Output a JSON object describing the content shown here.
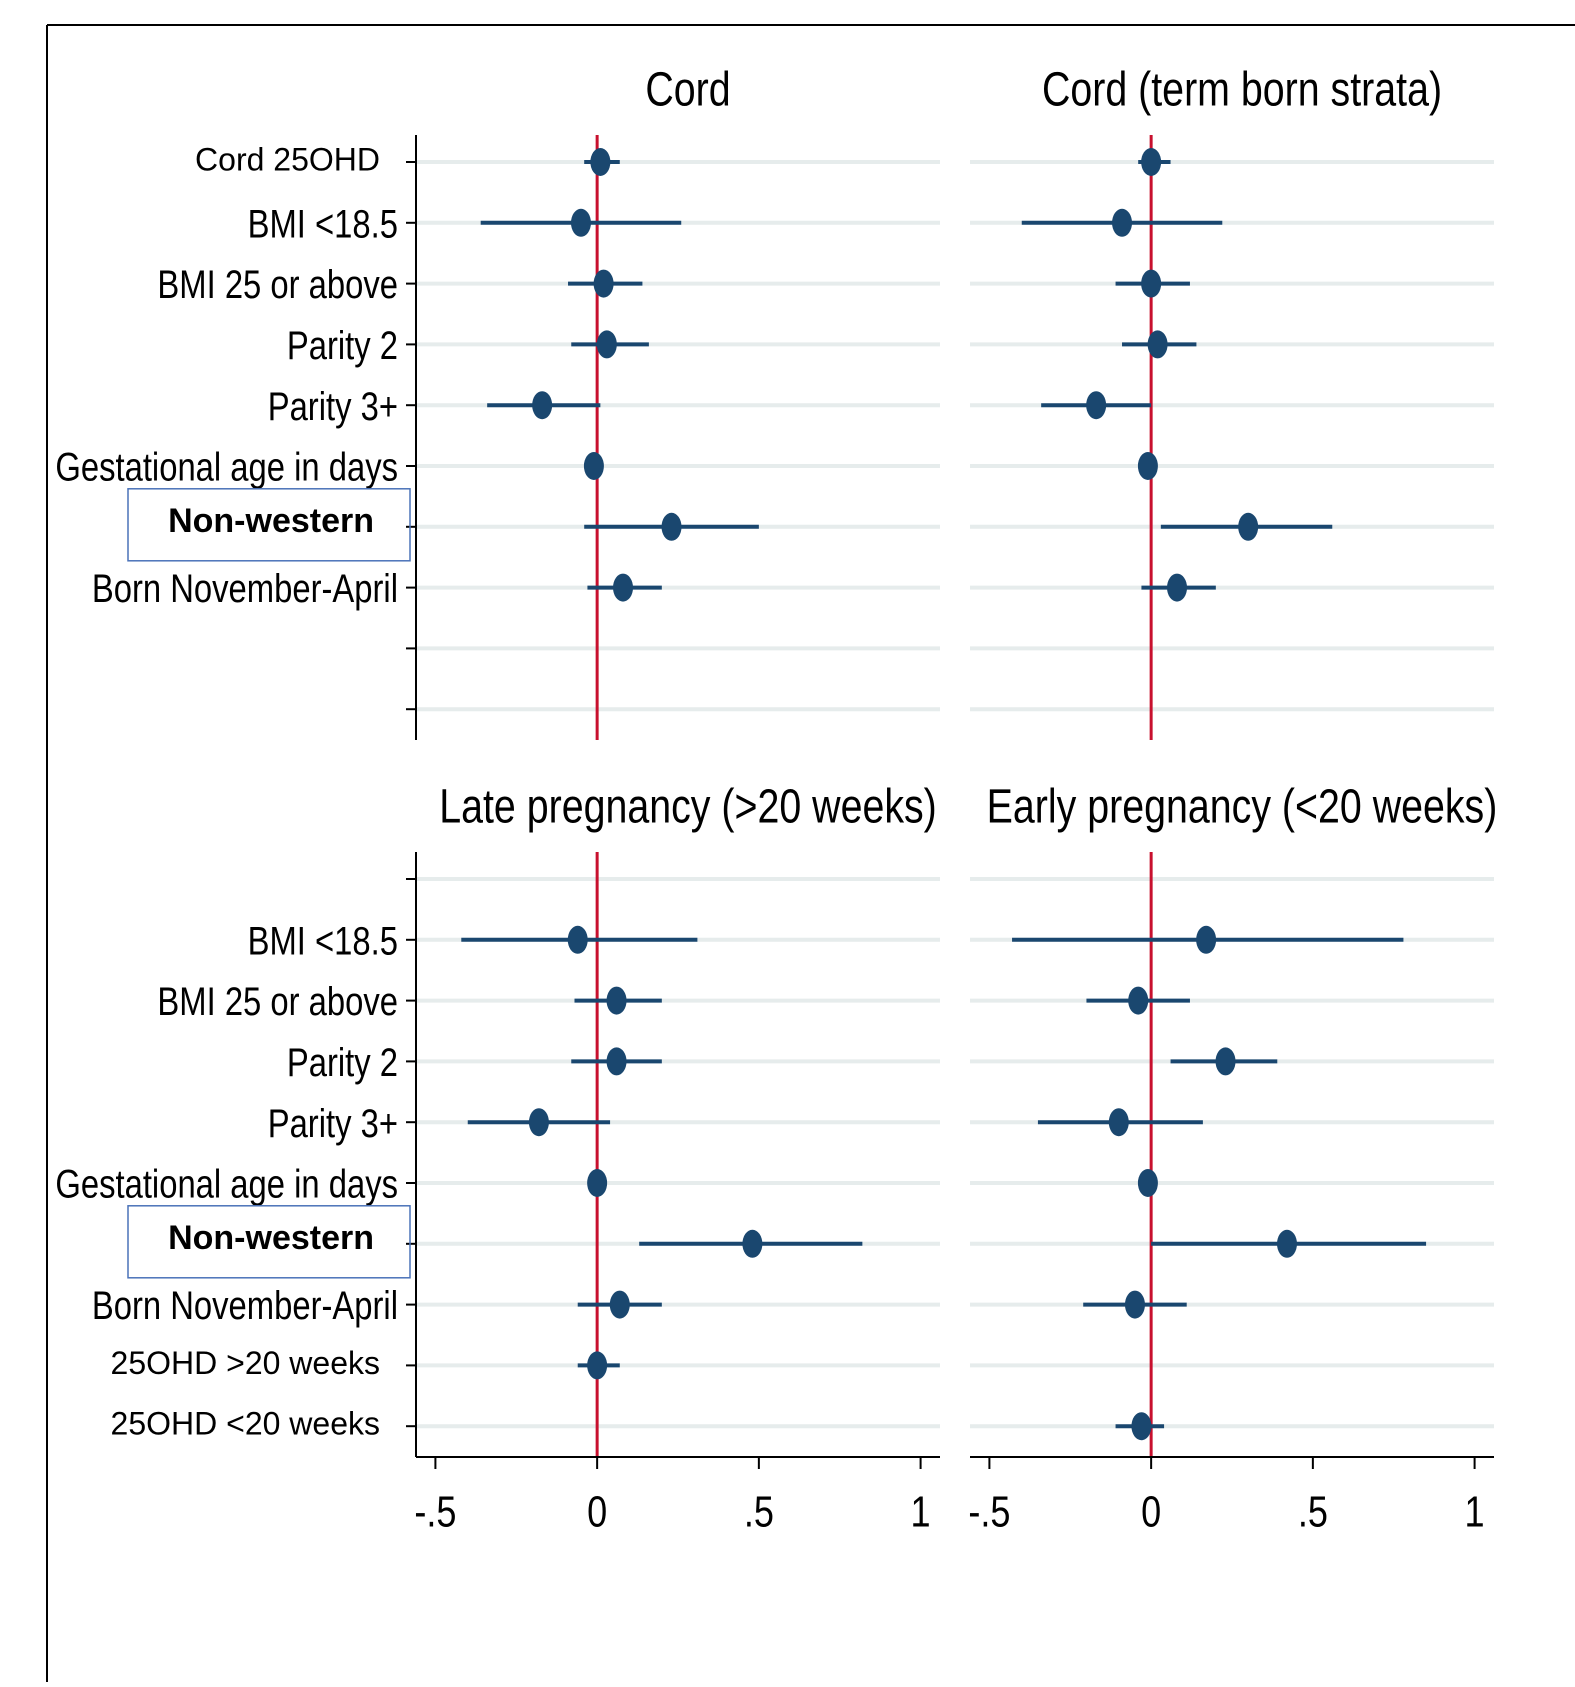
{
  "chart_data": [
    {
      "type": "forest",
      "title": "Cord",
      "categories": [
        "Cord 25OHD",
        "BMI <18.5",
        "BMI 25 or above",
        "Parity 2",
        "Parity 3+",
        "Gestational age in days",
        "Non-western",
        "Born November-April",
        null,
        null
      ],
      "values": [
        0.01,
        -0.05,
        0.02,
        0.03,
        -0.17,
        -0.01,
        0.23,
        0.08,
        null,
        null
      ],
      "lower": [
        -0.04,
        -0.36,
        -0.09,
        -0.08,
        -0.34,
        -0.01,
        -0.04,
        -0.03,
        null,
        null
      ],
      "upper": [
        0.07,
        0.26,
        0.14,
        0.16,
        0.01,
        -0.01,
        0.5,
        0.2,
        null,
        null
      ],
      "xlim": [
        -0.56,
        1.06
      ],
      "refline": 0,
      "color": "#1a476f",
      "refline_color": "#c8102e",
      "grid": true
    },
    {
      "type": "forest",
      "title": "Cord (term born strata)",
      "values": [
        0.0,
        -0.09,
        0.0,
        0.02,
        -0.17,
        -0.01,
        0.3,
        0.08,
        null,
        null
      ],
      "lower": [
        -0.04,
        -0.4,
        -0.11,
        -0.09,
        -0.34,
        -0.01,
        0.03,
        -0.03,
        null,
        null
      ],
      "upper": [
        0.06,
        0.22,
        0.12,
        0.14,
        0.0,
        -0.01,
        0.56,
        0.2,
        null,
        null
      ],
      "xlim": [
        -0.56,
        1.06
      ],
      "refline": 0,
      "color": "#1a476f",
      "refline_color": "#c8102e",
      "grid": true
    },
    {
      "type": "forest",
      "title": "Late pregnancy (>20 weeks)",
      "categories": [
        null,
        "BMI <18.5",
        "BMI 25 or above",
        "Parity 2",
        "Parity 3+",
        "Gestational age in days",
        "Non-western",
        "Born November-April",
        "25OHD >20 weeks",
        "25OHD <20 weeks"
      ],
      "values": [
        null,
        -0.06,
        0.06,
        0.06,
        -0.18,
        0.0,
        0.48,
        0.07,
        0.0,
        null
      ],
      "lower": [
        null,
        -0.42,
        -0.07,
        -0.08,
        -0.4,
        0.0,
        0.13,
        -0.06,
        -0.06,
        null
      ],
      "upper": [
        null,
        0.31,
        0.2,
        0.2,
        0.04,
        0.0,
        0.82,
        0.2,
        0.07,
        null
      ],
      "xlim": [
        -0.56,
        1.06
      ],
      "xticks": [
        {
          "value": -0.5,
          "label": "-.5"
        },
        0,
        {
          "value": 0.5,
          "label": ".5"
        },
        1
      ],
      "refline": 0,
      "color": "#1a476f",
      "refline_color": "#c8102e",
      "grid": true
    },
    {
      "type": "forest",
      "title": "Early pregnancy (<20 weeks)",
      "values": [
        null,
        0.17,
        -0.04,
        0.23,
        -0.1,
        -0.01,
        0.42,
        -0.05,
        null,
        -0.03
      ],
      "lower": [
        null,
        -0.43,
        -0.2,
        0.06,
        -0.35,
        -0.01,
        0.0,
        -0.21,
        null,
        -0.11
      ],
      "upper": [
        null,
        0.78,
        0.12,
        0.39,
        0.16,
        -0.01,
        0.85,
        0.11,
        null,
        0.04
      ],
      "xlim": [
        -0.56,
        1.06
      ],
      "xticks": [
        {
          "value": -0.5,
          "label": "-.5"
        },
        0,
        {
          "value": 0.5,
          "label": ".5"
        },
        1
      ],
      "refline": 0,
      "color": "#1a476f",
      "refline_color": "#c8102e",
      "grid": true
    }
  ]
}
